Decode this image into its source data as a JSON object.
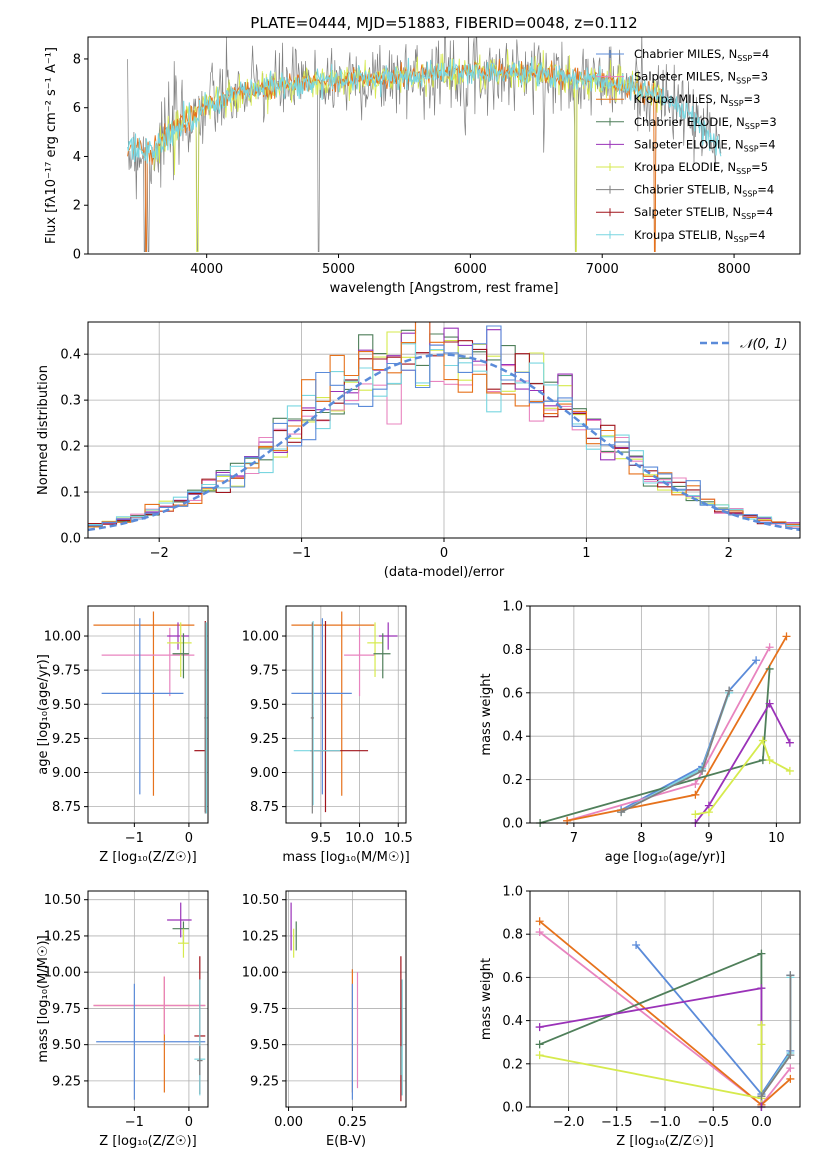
{
  "colors": {
    "chabrier_miles": "#5b8bd9",
    "salpeter_miles": "#f4a582",
    "kroupa_miles": "#e6721c",
    "chabrier_elodie": "#4f7f5a",
    "salpeter_elodie": "#9a32b8",
    "kroupa_elodie": "#d6ea4d",
    "chabrier_stelib": "#808080",
    "salpeter_stelib": "#a0141c",
    "kroupa_stelib": "#79d6e0",
    "pink": "#e884bf",
    "grid": "#b0b0b0"
  },
  "chart_data": [
    {
      "type": "line",
      "title": "PLATE=0444, MJD=51883, FIBERID=0048, z=0.112",
      "xlabel": "wavelength [Angstrom, rest frame]",
      "ylabel": "Flux [fλ10⁻¹⁷ erg cm⁻² s⁻¹ A⁻¹]",
      "xlim": [
        3100,
        8500
      ],
      "ylim": [
        0,
        8.9
      ],
      "xticks": [
        "4000",
        "5000",
        "6000",
        "7000",
        "8000"
      ],
      "yticks": [
        "0",
        "2",
        "4",
        "6",
        "8"
      ],
      "grid": false,
      "legend_position": "right",
      "legend": [
        {
          "label": "Chabrier MILES, N",
          "sub": "SSP",
          "suffix": "=4",
          "color_key": "chabrier_miles"
        },
        {
          "label": "Salpeter MILES, N",
          "sub": "SSP",
          "suffix": "=3",
          "color_key": "pink"
        },
        {
          "label": "Kroupa MILES, N",
          "sub": "SSP",
          "suffix": "=3",
          "color_key": "kroupa_miles"
        },
        {
          "label": "Chabrier ELODIE, N",
          "sub": "SSP",
          "suffix": "=3",
          "color_key": "chabrier_elodie"
        },
        {
          "label": "Salpeter ELODIE, N",
          "sub": "SSP",
          "suffix": "=4",
          "color_key": "salpeter_elodie"
        },
        {
          "label": "Kroupa ELODIE, N",
          "sub": "SSP",
          "suffix": "=5",
          "color_key": "kroupa_elodie"
        },
        {
          "label": "Chabrier STELIB, N",
          "sub": "SSP",
          "suffix": "=4",
          "color_key": "chabrier_stelib"
        },
        {
          "label": "Salpeter STELIB, N",
          "sub": "SSP",
          "suffix": "=4",
          "color_key": "salpeter_stelib"
        },
        {
          "label": "Kroupa STELIB, N",
          "sub": "SSP",
          "suffix": "=4",
          "color_key": "kroupa_stelib"
        }
      ],
      "continuum": {
        "x": [
          3400,
          3600,
          3800,
          4000,
          4200,
          4500,
          5000,
          5500,
          6000,
          6500,
          7000,
          7400,
          7700,
          7900
        ],
        "y": [
          4.2,
          4.3,
          5.3,
          6.1,
          6.5,
          6.9,
          7.1,
          7.3,
          7.5,
          7.4,
          7.1,
          6.6,
          5.5,
          4.2
        ]
      }
    },
    {
      "type": "step",
      "xlabel": "(data-model)/error",
      "ylabel": "Normed distribution",
      "xlim": [
        -2.5,
        2.5
      ],
      "ylim": [
        0,
        0.47
      ],
      "xticks": [
        "−2",
        "−1",
        "0",
        "1",
        "2"
      ],
      "yticks": [
        "0.0",
        "0.1",
        "0.2",
        "0.3",
        "0.4"
      ],
      "grid": true,
      "legend_position": "top-right",
      "legend": "𝒩(0, 1)",
      "bin_width": 0.1,
      "bins_from": -2.5,
      "bins_to": 2.5
    },
    {
      "type": "scatter",
      "xlabel": "Z [log₁₀(Z/Z☉)]",
      "ylabel": "age  [log₁₀(age/yr)]",
      "xticks": [
        "−1",
        "0"
      ],
      "yticks": [
        "8.75",
        "9.00",
        "9.25",
        "9.50",
        "9.75",
        "10.00"
      ],
      "xlim": [
        -1.85,
        0.35
      ],
      "ylim": [
        8.63,
        10.22
      ],
      "points": [
        {
          "x": -0.65,
          "xerr": [
            1.1,
            0.75
          ],
          "y": 10.08,
          "yerr": [
            1.25,
            0.1
          ],
          "c": "kroupa_miles"
        },
        {
          "x": -0.35,
          "xerr": [
            1.25,
            0.45
          ],
          "y": 9.86,
          "yerr": [
            0.3,
            0.2
          ],
          "c": "pink"
        },
        {
          "x": -0.9,
          "xerr": [
            0.7,
            0.8
          ],
          "y": 9.58,
          "yerr": [
            0.74,
            0.55
          ],
          "c": "chabrier_miles"
        },
        {
          "x": -0.2,
          "xerr": [
            0.2,
            0.2
          ],
          "y": 10.0,
          "yerr": [
            0.1,
            0.1
          ],
          "c": "salpeter_elodie"
        },
        {
          "x": -0.15,
          "xerr": [
            0.25,
            0.2
          ],
          "y": 9.95,
          "yerr": [
            0.25,
            0.15
          ],
          "c": "kroupa_elodie"
        },
        {
          "x": -0.1,
          "xerr": [
            0.2,
            0.1
          ],
          "y": 9.87,
          "yerr": [
            0.18,
            0.15
          ],
          "c": "chabrier_elodie"
        },
        {
          "x": 0.3,
          "xerr": [
            0.2,
            0.0
          ],
          "y": 9.16,
          "yerr": [
            0.45,
            0.95
          ],
          "c": "salpeter_stelib"
        },
        {
          "x": 0.32,
          "xerr": [
            0.02,
            0.02
          ],
          "y": 9.4,
          "yerr": [
            0.7,
            0.7
          ],
          "c": "kroupa_stelib"
        },
        {
          "x": 0.3,
          "xerr": [
            0.02,
            0.02
          ],
          "y": 9.4,
          "yerr": [
            0.7,
            0.7
          ],
          "c": "chabrier_stelib"
        }
      ]
    },
    {
      "type": "scatter",
      "xlabel": "mass [log₁₀(M/M☉)]",
      "xticks": [
        "9.5",
        "10.0",
        "10.5"
      ],
      "yticks": [
        "8.75",
        "9.00",
        "9.25",
        "9.50",
        "9.75",
        "10.00"
      ],
      "xlim": [
        9.05,
        10.6
      ],
      "ylim": [
        8.63,
        10.22
      ],
      "points": [
        {
          "x": 9.77,
          "xerr": [
            0.65,
            0.42
          ],
          "y": 10.08,
          "yerr": [
            1.25,
            0.1
          ],
          "c": "kroupa_miles"
        },
        {
          "x": 10.0,
          "xerr": [
            0.2,
            0.2
          ],
          "y": 9.86,
          "yerr": [
            0.3,
            0.2
          ],
          "c": "pink"
        },
        {
          "x": 9.52,
          "xerr": [
            0.4,
            0.38
          ],
          "y": 9.58,
          "yerr": [
            0.74,
            0.55
          ],
          "c": "chabrier_miles"
        },
        {
          "x": 10.37,
          "xerr": [
            0.12,
            0.12
          ],
          "y": 10.0,
          "yerr": [
            0.1,
            0.1
          ],
          "c": "salpeter_elodie"
        },
        {
          "x": 10.2,
          "xerr": [
            0.1,
            0.1
          ],
          "y": 9.95,
          "yerr": [
            0.25,
            0.15
          ],
          "c": "kroupa_elodie"
        },
        {
          "x": 10.3,
          "xerr": [
            0.12,
            0.1
          ],
          "y": 9.87,
          "yerr": [
            0.18,
            0.15
          ],
          "c": "chabrier_elodie"
        },
        {
          "x": 9.56,
          "xerr": [
            0.2,
            0.55
          ],
          "y": 9.16,
          "yerr": [
            0.45,
            0.95
          ],
          "c": "salpeter_stelib"
        },
        {
          "x": 9.4,
          "xerr": [
            0.25,
            0.35
          ],
          "y": 9.16,
          "yerr": [
            0.4,
            0.95
          ],
          "c": "kroupa_stelib"
        },
        {
          "x": 9.39,
          "xerr": [
            0.02,
            0.02
          ],
          "y": 9.4,
          "yerr": [
            0.7,
            0.7
          ],
          "c": "chabrier_stelib"
        }
      ]
    },
    {
      "type": "line",
      "xlabel": "age  [log₁₀(age/yr)]",
      "ylabel": "mass weight",
      "xticks": [
        "7",
        "8",
        "9",
        "10"
      ],
      "yticks": [
        "0.0",
        "0.2",
        "0.4",
        "0.6",
        "0.8",
        "1.0"
      ],
      "xlim": [
        6.35,
        10.35
      ],
      "ylim": [
        0,
        1.0
      ],
      "grid": true,
      "series": [
        {
          "c": "chabrier_miles",
          "x": [
            7.7,
            8.9,
            9.3,
            9.7
          ],
          "y": [
            0.06,
            0.26,
            0.61,
            0.75
          ]
        },
        {
          "c": "pink",
          "x": [
            6.9,
            8.8,
            9.9
          ],
          "y": [
            0.01,
            0.18,
            0.81
          ]
        },
        {
          "c": "kroupa_miles",
          "x": [
            6.9,
            8.8,
            10.15
          ],
          "y": [
            0.01,
            0.13,
            0.86
          ]
        },
        {
          "c": "chabrier_elodie",
          "x": [
            6.5,
            9.8,
            9.9
          ],
          "y": [
            0.0,
            0.29,
            0.71
          ]
        },
        {
          "c": "salpeter_elodie",
          "x": [
            8.8,
            9.0,
            9.9,
            10.2
          ],
          "y": [
            0.0,
            0.08,
            0.55,
            0.37
          ]
        },
        {
          "c": "kroupa_elodie",
          "x": [
            8.8,
            9.0,
            9.8,
            9.9,
            10.2
          ],
          "y": [
            0.04,
            0.05,
            0.38,
            0.29,
            0.24
          ]
        },
        {
          "c": "kroupa_stelib",
          "x": [
            7.7,
            8.9,
            9.3
          ],
          "y": [
            0.05,
            0.25,
            0.6
          ]
        },
        {
          "c": "chabrier_stelib",
          "x": [
            7.7,
            8.9,
            9.3
          ],
          "y": [
            0.05,
            0.24,
            0.61
          ]
        }
      ]
    },
    {
      "type": "scatter",
      "xlabel": "Z [log₁₀(Z/Z☉)]",
      "ylabel": "mass [log₁₀(M/M☉)]",
      "xticks": [
        "−1",
        "0"
      ],
      "yticks": [
        "9.25",
        "9.50",
        "9.75",
        "10.00",
        "10.25",
        "10.50"
      ],
      "xlim": [
        -1.85,
        0.35
      ],
      "ylim": [
        9.07,
        10.56
      ],
      "points": [
        {
          "x": -0.45,
          "xerr": [
            1.3,
            0.75
          ],
          "y": 9.77,
          "yerr": [
            0.6,
            0.2
          ],
          "c": "kroupa_miles"
        },
        {
          "x": -0.45,
          "xerr": [
            1.3,
            0.75
          ],
          "y": 9.77,
          "yerr": [
            0.2,
            0.2
          ],
          "c": "pink"
        },
        {
          "x": -1.0,
          "xerr": [
            0.7,
            1.3
          ],
          "y": 9.52,
          "yerr": [
            0.4,
            0.4
          ],
          "c": "chabrier_miles"
        },
        {
          "x": -0.15,
          "xerr": [
            0.25,
            0.2
          ],
          "y": 10.36,
          "yerr": [
            0.12,
            0.12
          ],
          "c": "salpeter_elodie"
        },
        {
          "x": -0.1,
          "xerr": [
            0.2,
            0.1
          ],
          "y": 10.3,
          "yerr": [
            0.1,
            0.05
          ],
          "c": "chabrier_elodie"
        },
        {
          "x": -0.1,
          "xerr": [
            0.1,
            0.1
          ],
          "y": 10.2,
          "yerr": [
            0.1,
            0.1
          ],
          "c": "kroupa_elodie"
        },
        {
          "x": 0.2,
          "xerr": [
            0.1,
            0.1
          ],
          "y": 9.56,
          "yerr": [
            0.4,
            0.55
          ],
          "c": "salpeter_stelib"
        },
        {
          "x": 0.2,
          "xerr": [
            0.1,
            0.1
          ],
          "y": 9.4,
          "yerr": [
            0.25,
            0.55
          ],
          "c": "kroupa_stelib"
        },
        {
          "x": 0.2,
          "xerr": [
            0.05,
            0.05
          ],
          "y": 9.39,
          "yerr": [
            0.1,
            0.1
          ],
          "c": "chabrier_stelib"
        }
      ]
    },
    {
      "type": "scatter",
      "xlabel": "E(B-V)",
      "xticks": [
        "0.00",
        "0.25"
      ],
      "yticks": [
        "9.25",
        "9.50",
        "9.75",
        "10.00",
        "10.25",
        "10.50"
      ],
      "xlim": [
        -0.01,
        0.46
      ],
      "ylim": [
        9.07,
        10.56
      ],
      "points": [
        {
          "x": 0.01,
          "y": 10.3,
          "yerr": [
            0.15,
            0.18
          ],
          "c": "salpeter_elodie"
        },
        {
          "x": 0.02,
          "y": 10.2,
          "yerr": [
            0.1,
            0.1
          ],
          "c": "kroupa_elodie"
        },
        {
          "x": 0.03,
          "y": 10.25,
          "yerr": [
            0.1,
            0.1
          ],
          "c": "chabrier_elodie"
        },
        {
          "x": 0.25,
          "y": 9.77,
          "yerr": [
            0.6,
            0.25
          ],
          "c": "kroupa_miles"
        },
        {
          "x": 0.27,
          "y": 9.6,
          "yerr": [
            0.4,
            0.4
          ],
          "c": "pink"
        },
        {
          "x": 0.25,
          "y": 9.52,
          "yerr": [
            0.4,
            0.4
          ],
          "c": "chabrier_miles"
        },
        {
          "x": 0.44,
          "y": 9.56,
          "yerr": [
            0.45,
            0.55
          ],
          "c": "salpeter_stelib"
        },
        {
          "x": 0.445,
          "y": 9.4,
          "yerr": [
            0.25,
            0.55
          ],
          "c": "kroupa_stelib"
        },
        {
          "x": 0.44,
          "y": 9.39,
          "yerr": [
            0.1,
            0.1
          ],
          "c": "chabrier_stelib"
        }
      ]
    },
    {
      "type": "line",
      "xlabel": "Z [log₁₀(Z/Z☉)]",
      "ylabel": "mass weight",
      "xticks": [
        "−2.0",
        "−1.5",
        "−1.0",
        "−0.5",
        "0.0"
      ],
      "yticks": [
        "0.0",
        "0.2",
        "0.4",
        "0.6",
        "0.8",
        "1.0"
      ],
      "xlim": [
        -2.4,
        0.4
      ],
      "ylim": [
        0,
        1.0
      ],
      "grid": true,
      "series": [
        {
          "c": "chabrier_miles",
          "x": [
            -1.3,
            0.0,
            0.3,
            0.3
          ],
          "y": [
            0.75,
            0.06,
            0.26,
            0.61
          ]
        },
        {
          "c": "pink",
          "x": [
            -2.3,
            0.0,
            0.3
          ],
          "y": [
            0.81,
            0.01,
            0.18
          ]
        },
        {
          "c": "kroupa_miles",
          "x": [
            -2.3,
            0.0,
            0.3
          ],
          "y": [
            0.86,
            0.01,
            0.13
          ]
        },
        {
          "c": "chabrier_elodie",
          "x": [
            -2.3,
            0.0,
            0.0
          ],
          "y": [
            0.29,
            0.71,
            0.0
          ]
        },
        {
          "c": "salpeter_elodie",
          "x": [
            -2.3,
            0.0,
            0.0
          ],
          "y": [
            0.37,
            0.55,
            0.0
          ]
        },
        {
          "c": "kroupa_elodie",
          "x": [
            -2.3,
            0.0,
            0.0,
            0.0
          ],
          "y": [
            0.24,
            0.04,
            0.29,
            0.38
          ]
        },
        {
          "c": "kroupa_stelib",
          "x": [
            0.3,
            0.3,
            0.0
          ],
          "y": [
            0.6,
            0.25,
            0.05
          ]
        },
        {
          "c": "chabrier_stelib",
          "x": [
            0.3,
            0.3,
            0.0
          ],
          "y": [
            0.61,
            0.24,
            0.05
          ]
        }
      ]
    }
  ]
}
